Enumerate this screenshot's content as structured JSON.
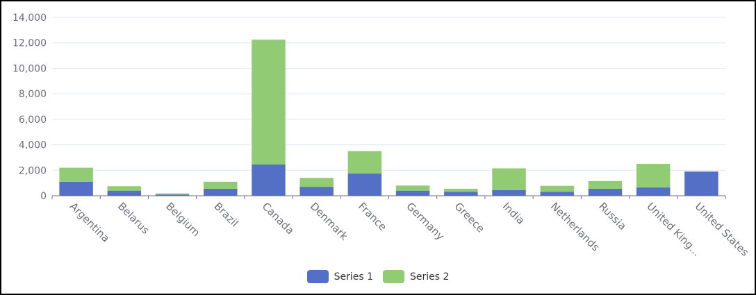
{
  "chart_data": {
    "type": "bar",
    "stacked": true,
    "categories": [
      "Argentina",
      "Belarus",
      "Belgium",
      "Brazil",
      "Canada",
      "Denmark",
      "France",
      "Germany",
      "Greece",
      "India",
      "Netherlands",
      "Russia",
      "United King...",
      "United States"
    ],
    "series": [
      {
        "name": "Series 1",
        "color": "#5470c6",
        "values": [
          1100,
          400,
          100,
          550,
          2450,
          700,
          1750,
          400,
          300,
          450,
          300,
          550,
          650,
          1900
        ]
      },
      {
        "name": "Series 2",
        "color": "#91cc75",
        "values": [
          1100,
          350,
          80,
          550,
          9800,
          700,
          1750,
          400,
          250,
          1700,
          480,
          600,
          1850,
          0
        ]
      }
    ],
    "ylim": [
      0,
      14000
    ],
    "yticks": [
      "0",
      "2,000",
      "4,000",
      "6,000",
      "8,000",
      "10,000",
      "12,000",
      "14,000"
    ],
    "ytick_values": [
      0,
      2000,
      4000,
      6000,
      8000,
      10000,
      12000,
      14000
    ],
    "grid": true,
    "legend_position": "bottom-center",
    "xlabel": "",
    "ylabel": ""
  }
}
